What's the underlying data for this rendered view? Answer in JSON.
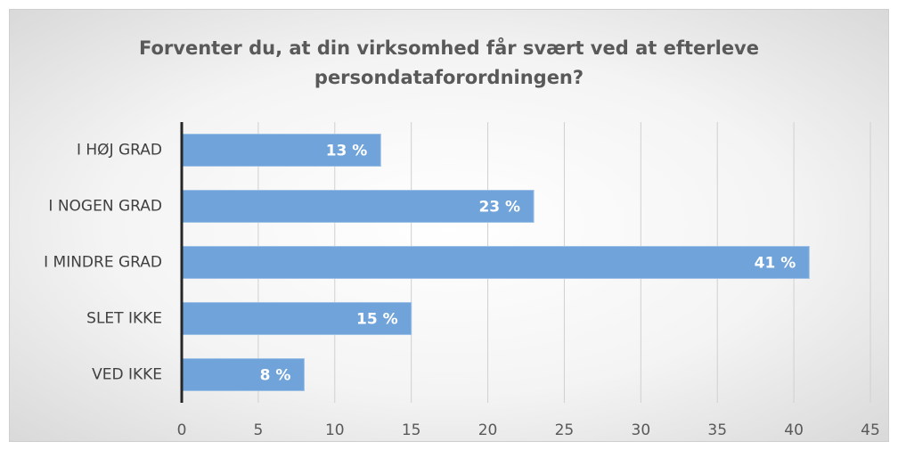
{
  "chart_data": {
    "type": "barh",
    "title": "Forventer du, at din virksomhed får svært ved at efterleve persondataforordningen?",
    "categories": [
      "I HØJ GRAD",
      "I NOGEN GRAD",
      "I MINDRE GRAD",
      "SLET IKKE",
      "VED IKKE"
    ],
    "values": [
      13,
      23,
      41,
      15,
      8
    ],
    "value_labels": [
      "13 %",
      "23 %",
      "41 %",
      "15 %",
      "8 %"
    ],
    "color": "#6fa3d9",
    "xlim": [
      0,
      45
    ],
    "xticks": [
      0,
      5,
      10,
      15,
      20,
      25,
      30,
      35,
      40,
      45
    ],
    "grid": true
  }
}
